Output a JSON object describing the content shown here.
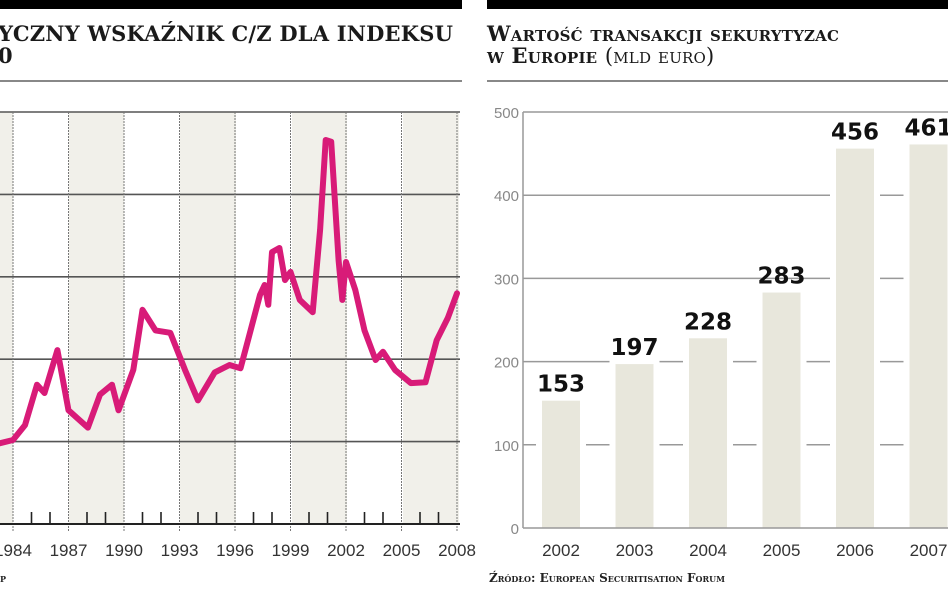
{
  "chart_data": [
    {
      "type": "line",
      "title_line1": "YCZNY WSKAŹNIK C/Z DLA INDEKSU",
      "title_line2": "0",
      "source": "p",
      "xlabel": "",
      "ylabel": "",
      "x_ticks": [
        "1984",
        "1987",
        "1990",
        "1993",
        "1996",
        "1999",
        "2002",
        "2005",
        "2008"
      ],
      "xlim": [
        1983.3,
        2008
      ],
      "ylim_gridlines": [
        0,
        5
      ],
      "y_tick_labels_visible": false,
      "grid": true,
      "alternating_column_shading": true,
      "line_color": "#d81b78",
      "band_color": "#f1f0ea",
      "series": [
        {
          "x": [
            1983.3,
            1984.0,
            1984.65,
            1985.3,
            1985.7,
            1986.4,
            1987.0,
            1988.05,
            1988.7,
            1989.35,
            1989.7,
            1990.5,
            1991.0,
            1991.7,
            1992.5,
            1993.3,
            1994.0,
            1994.9,
            1995.7,
            1996.3,
            1996.7,
            1997.35,
            1997.6,
            1997.8,
            1998.0,
            1998.4,
            1998.7,
            1999.0,
            1999.5,
            2000.2,
            2000.6,
            2000.9,
            2001.2,
            2001.6,
            2001.8,
            2002.0,
            2002.5,
            2003.0,
            2003.6,
            2004.0,
            2004.65,
            2005.5,
            2006.3,
            2006.9,
            2007.5,
            2008.0
          ],
          "y": [
            0.98,
            1.02,
            1.2,
            1.69,
            1.59,
            2.11,
            1.38,
            1.17,
            1.57,
            1.69,
            1.38,
            1.87,
            2.6,
            2.35,
            2.32,
            1.87,
            1.5,
            1.84,
            1.93,
            1.89,
            2.23,
            2.78,
            2.9,
            2.66,
            3.3,
            3.35,
            2.96,
            3.06,
            2.72,
            2.57,
            3.57,
            4.66,
            4.64,
            3.2,
            2.72,
            3.18,
            2.84,
            2.35,
            1.99,
            2.09,
            1.87,
            1.71,
            1.72,
            2.23,
            2.5,
            2.8
          ]
        }
      ]
    },
    {
      "type": "bar",
      "title_line1": "Wartość transakcji sekurytyzac",
      "title_line2_bold": "w Europie",
      "title_line2_light": "(mld euro)",
      "source": "Źródło: European Securitisation Forum",
      "categories": [
        "2002",
        "2003",
        "2004",
        "2005",
        "2006",
        "2007"
      ],
      "values": [
        153,
        197,
        228,
        283,
        456,
        461
      ],
      "data_labels": [
        "153",
        "197",
        "228",
        "283",
        "456",
        "461"
      ],
      "y_ticks": [
        "0",
        "100",
        "200",
        "300",
        "400",
        "500"
      ],
      "ylim": [
        0,
        500
      ],
      "grid": true,
      "bar_color": "#e8e7dc"
    }
  ]
}
